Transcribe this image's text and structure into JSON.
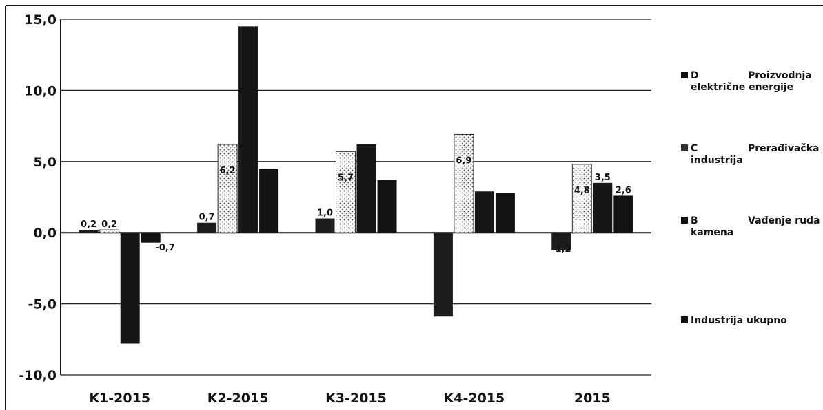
{
  "chart_data": {
    "type": "bar",
    "title": "",
    "xlabel": "",
    "ylabel": "",
    "ylim": [
      -10,
      15
    ],
    "yticks": [
      15,
      10,
      5,
      0,
      -5,
      -10
    ],
    "ytick_labels": [
      "15,0",
      "10,0",
      "5,0",
      "0,0",
      "-5,0",
      "-10,0"
    ],
    "grid": true,
    "legend_position": "right",
    "categories": [
      "K1-2015",
      "K2-2015",
      "K3-2015",
      "K4-2015",
      "2015"
    ],
    "series": [
      {
        "name": "D Proizvodnja električne energije",
        "legend_lines": [
          "D",
          "Proizvodnja",
          "električne energije"
        ],
        "values": [
          0.2,
          0.7,
          1.0,
          -5.9,
          -1.2
        ],
        "labels": [
          "0,2",
          "0,7",
          "1,0",
          "",
          "-1,2"
        ],
        "color": "#1c1c1c",
        "pattern": "solid"
      },
      {
        "name": "C Prerađivačka industrija",
        "legend_lines": [
          "C",
          "Prerađivačka",
          "industrija"
        ],
        "values": [
          0.2,
          6.2,
          5.7,
          6.9,
          4.8
        ],
        "labels": [
          "0,2",
          "6,2",
          "5,7",
          "6,9",
          "4,8"
        ],
        "color": "#f2f2f2",
        "pattern": "dotted"
      },
      {
        "name": "B Vađenje ruda i kamena",
        "legend_lines": [
          "B",
          "Vađenje ruda i",
          "kamena"
        ],
        "values": [
          -7.8,
          14.5,
          6.2,
          2.9,
          3.5
        ],
        "labels": [
          "",
          "",
          "",
          "",
          "3,5"
        ],
        "color": "#161616",
        "pattern": "solid"
      },
      {
        "name": "Industrija ukupno",
        "legend_lines": [
          "Industrija ukupno"
        ],
        "values": [
          -0.7,
          4.5,
          3.7,
          2.8,
          2.6
        ],
        "labels": [
          "-0,7",
          "",
          "",
          "",
          "2,6"
        ],
        "color": "#121212",
        "pattern": "solid"
      }
    ]
  }
}
